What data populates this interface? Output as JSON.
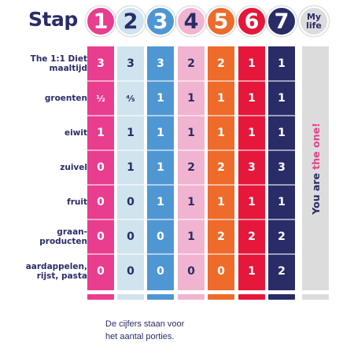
{
  "title": "Stap",
  "steps": [
    {
      "label": "1",
      "color": "#e93d8f",
      "text_color": "#ffffff"
    },
    {
      "label": "2",
      "color": "#cfe4ef",
      "text_color": "#2a2c68"
    },
    {
      "label": "3",
      "color": "#4f97d3",
      "text_color": "#ffffff"
    },
    {
      "label": "4",
      "color": "#f0b4d1",
      "text_color": "#2a2c68"
    },
    {
      "label": "5",
      "color": "#ee6b2a",
      "text_color": "#ffffff"
    },
    {
      "label": "6",
      "color": "#e5173b",
      "text_color": "#ffffff"
    },
    {
      "label": "7",
      "color": "#2a2c68",
      "text_color": "#ffffff"
    }
  ],
  "my_life": {
    "line1": "My",
    "line2": "life",
    "color": "#dcdcdc"
  },
  "rows": [
    {
      "label": [
        "The 1:1 Diet",
        "maaltijd"
      ],
      "values": [
        "3",
        "3",
        "3",
        "2",
        "2",
        "1",
        "1"
      ]
    },
    {
      "label": [
        "groenten"
      ],
      "values": [
        "½",
        "⅘",
        "1",
        "1",
        "1",
        "1",
        "1"
      ]
    },
    {
      "label": [
        "eiwit"
      ],
      "values": [
        "1",
        "1",
        "1",
        "1",
        "1",
        "1",
        "1"
      ]
    },
    {
      "label": [
        "zuivel"
      ],
      "values": [
        "0",
        "1",
        "1",
        "2",
        "2",
        "3",
        "3"
      ]
    },
    {
      "label": [
        "fruit"
      ],
      "values": [
        "0",
        "0",
        "1",
        "1",
        "1",
        "1",
        "1"
      ]
    },
    {
      "label": [
        "graan-",
        "producten"
      ],
      "values": [
        "0",
        "0",
        "0",
        "1",
        "2",
        "2",
        "2"
      ]
    },
    {
      "label": [
        "aardappelen,",
        "rijst, pasta"
      ],
      "values": [
        "0",
        "0",
        "0",
        "0",
        "0",
        "1",
        "2"
      ]
    }
  ],
  "my_life_text": {
    "prefix": "You are ",
    "accent": "the one!"
  },
  "footnote": [
    "De cijfers staan voor",
    "het aantal porties."
  ]
}
